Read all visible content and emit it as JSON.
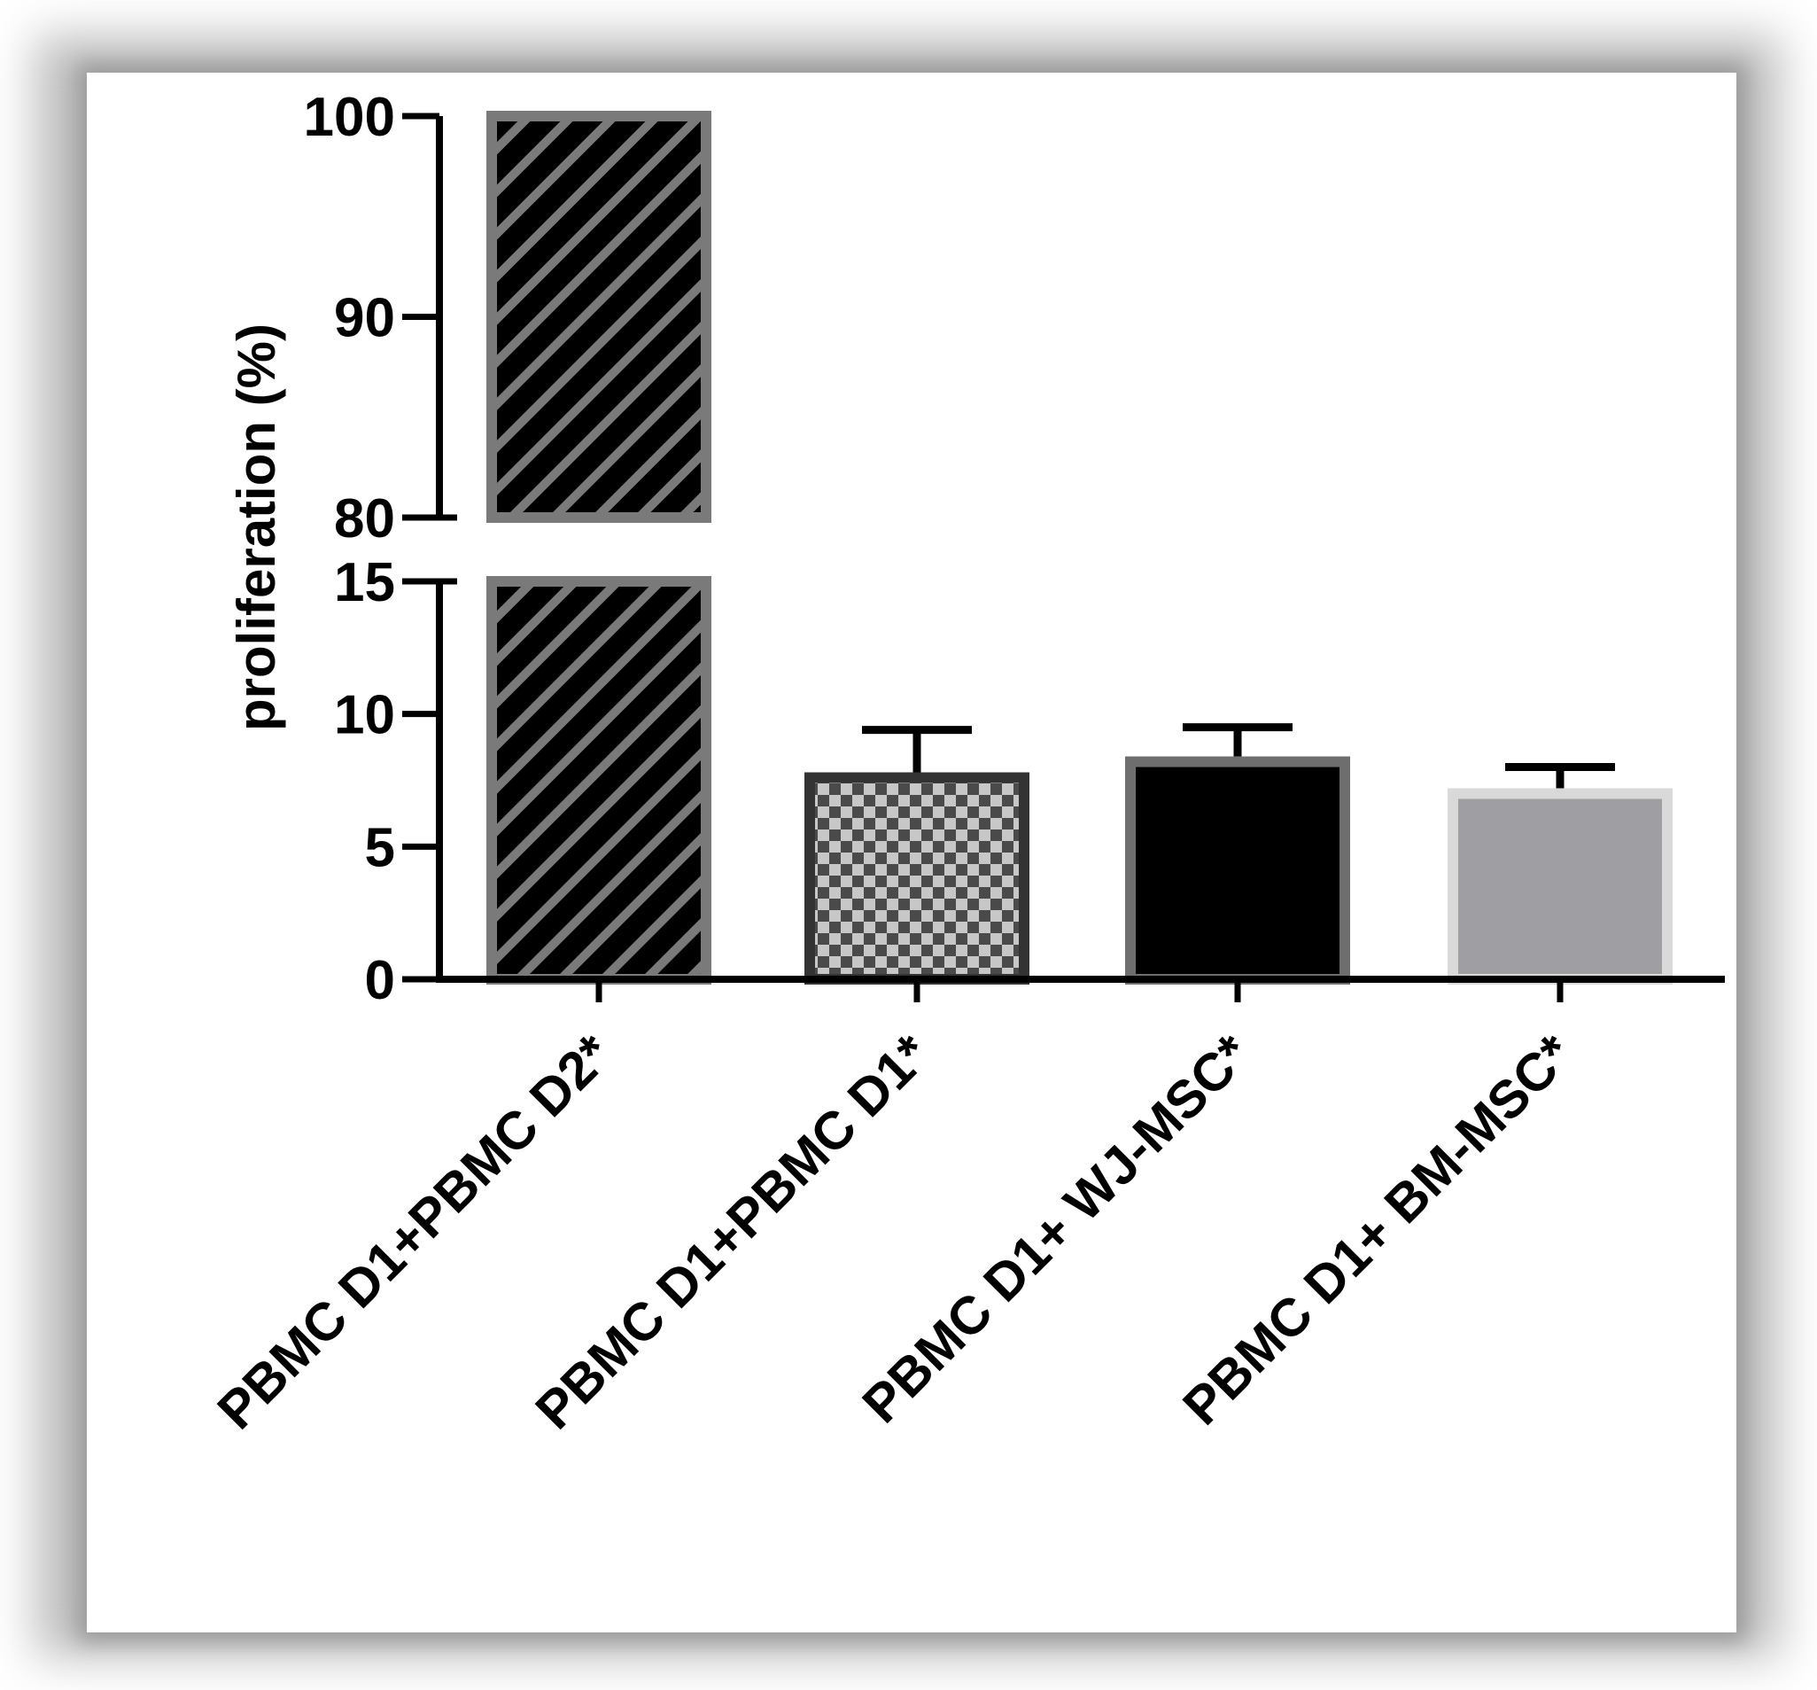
{
  "chart_data": {
    "type": "bar",
    "title": "",
    "xlabel": "",
    "ylabel": "proliferation (%)",
    "categories": [
      "PBMC D1+PBMC D2*",
      "PBMC D1+PBMC D1*",
      "PBMC D1+ WJ-MSC*",
      "PBMC D1+ BM-MSC*"
    ],
    "values": [
      100,
      7.6,
      8.2,
      7.0
    ],
    "error": [
      null,
      1.8,
      1.3,
      1.0
    ],
    "y_axis_break": {
      "lower_segment_range": [
        0,
        15
      ],
      "upper_segment_range": [
        80,
        100
      ],
      "lower_ticks": [
        0,
        5,
        10,
        15
      ],
      "upper_ticks": [
        80,
        90,
        100
      ]
    },
    "bar_fills": [
      "diagonal-hatch-black-gray",
      "checkerboard-gray",
      "black",
      "gray"
    ],
    "bar_colors": [
      "#000000",
      "#888888",
      "#000000",
      "#9e9ea3"
    ],
    "bar_edge_colors": [
      "#7a7a7a",
      "#333333",
      "#6e6e6e",
      "#d9d9d9"
    ],
    "grid": false,
    "legend": "none"
  }
}
